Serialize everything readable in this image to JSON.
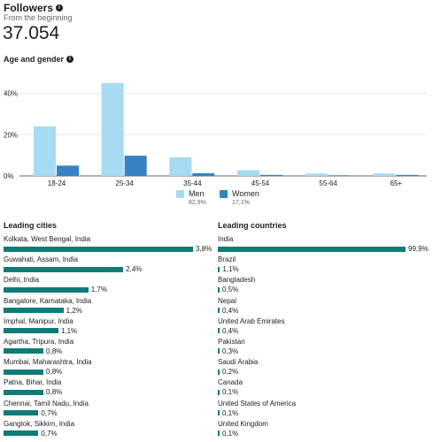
{
  "header": {
    "title": "Followers",
    "subtitle": "From the beginning",
    "total": "37.054"
  },
  "age_gender": {
    "title": "Age and gender"
  },
  "colors": {
    "men": "#a6dbf3",
    "women": "#3582c4",
    "list_bar": "#0f7c78",
    "grid": "#e4e6eb",
    "text": "#1c1e21",
    "muted": "#65676b"
  },
  "chart_data": {
    "type": "bar",
    "title": "Age and gender",
    "categories": [
      "18-24",
      "25-34",
      "35-44",
      "45-54",
      "55-64",
      "65+"
    ],
    "series": [
      {
        "name": "Men",
        "values": [
          24,
          45,
          9,
          2.8,
          1.2,
          1.2
        ],
        "total_label": "82,9%"
      },
      {
        "name": "Women",
        "values": [
          5,
          9.8,
          1.3,
          0.5,
          0.3,
          0.5
        ],
        "total_label": "17,1%"
      }
    ],
    "yticks": [
      "0%",
      "20%",
      "40%"
    ],
    "ylim": [
      0,
      48
    ],
    "grid": true,
    "legend_position": "bottom"
  },
  "leading_cities": {
    "title": "Leading cities",
    "items": [
      {
        "label": "Kolkata, West Bengal, India",
        "value": "3,8%",
        "pct": 3.8
      },
      {
        "label": "Guwahati, Assam, India",
        "value": "2,4%",
        "pct": 2.4
      },
      {
        "label": "Delhi, India",
        "value": "1,7%",
        "pct": 1.7
      },
      {
        "label": "Bangalore, Karnataka, India",
        "value": "1,2%",
        "pct": 1.2
      },
      {
        "label": "Imphal, Manipur, India",
        "value": "1,1%",
        "pct": 1.1
      },
      {
        "label": "Agartha, Tripura, India",
        "value": "0,8%",
        "pct": 0.8
      },
      {
        "label": "Mumbai, Maharashtra, India",
        "value": "0,8%",
        "pct": 0.8
      },
      {
        "label": "Patna, Bihar, India",
        "value": "0,8%",
        "pct": 0.8
      },
      {
        "label": "Chennai, Tamil Nadu, India",
        "value": "0,7%",
        "pct": 0.7
      },
      {
        "label": "Gangtok, Sikkim, India",
        "value": "0,7%",
        "pct": 0.7
      }
    ]
  },
  "leading_countries": {
    "title": "Leading countries",
    "items": [
      {
        "label": "India",
        "value": "99,9%",
        "pct": 99.9
      },
      {
        "label": "Brazil",
        "value": "1,1%",
        "pct": 1.1
      },
      {
        "label": "Bangladesh",
        "value": "0,5%",
        "pct": 0.5
      },
      {
        "label": "Nepal",
        "value": "0,4%",
        "pct": 0.4
      },
      {
        "label": "United Arab Emirates",
        "value": "0,4%",
        "pct": 0.4
      },
      {
        "label": "Pakistan",
        "value": "0,3%",
        "pct": 0.3
      },
      {
        "label": "Saudi Arabia",
        "value": "0,2%",
        "pct": 0.2
      },
      {
        "label": "Canada",
        "value": "0,1%",
        "pct": 0.1
      },
      {
        "label": "United States of America",
        "value": "0,1%",
        "pct": 0.1
      },
      {
        "label": "United Kingdom",
        "value": "0,1%",
        "pct": 0.1
      }
    ]
  }
}
